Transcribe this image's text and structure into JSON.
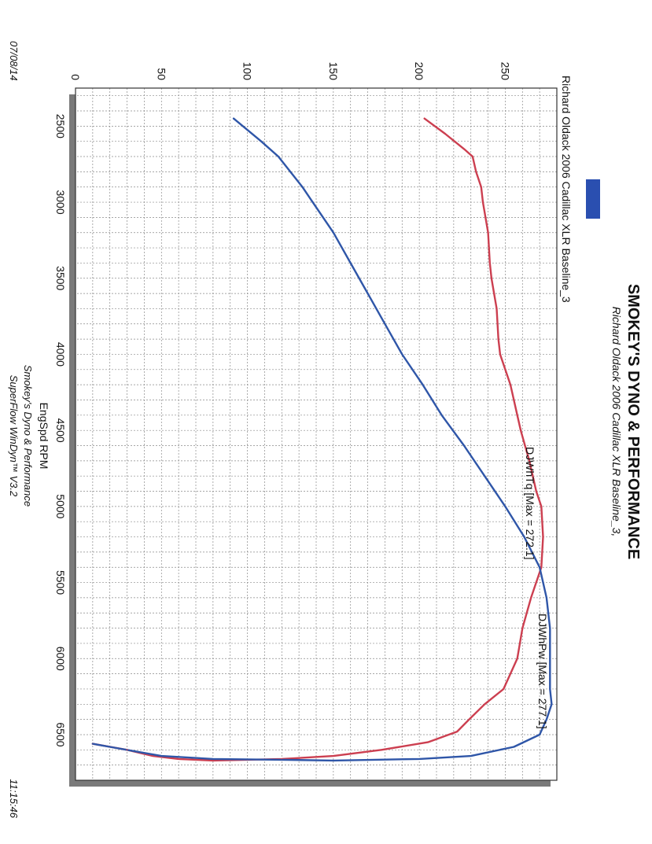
{
  "header": {
    "title": "SMOKEY'S DYNO & PERFORMANCE",
    "subtitle": "Richard Oldack 2006 Cadillac XLR Baseline_3,",
    "run_name": "Richard Oldack 2006 Cadillac XLR Baseline_3"
  },
  "footer": {
    "date": "07/08/14",
    "time": "11:15:46",
    "credit_1": "Smokey's Dyno & Performance",
    "credit_2": "SuperFlow WinDyn™ V3.2"
  },
  "colors": {
    "torque": "#cc3f50",
    "power": "#2f56a8",
    "legend_swatch": "#2a4fb0"
  },
  "chart_data": {
    "type": "line",
    "xlabel": "EngSpd RPM",
    "ylabel": "",
    "xlim": [
      2250,
      6800
    ],
    "ylim": [
      0,
      280
    ],
    "xticks": [
      2500,
      3000,
      3500,
      4000,
      4500,
      5000,
      5500,
      6000,
      6500
    ],
    "yticks": [
      0,
      50,
      100,
      150,
      200,
      250
    ],
    "grid": true,
    "series": [
      {
        "name": "DJWhTq [Max = 272.1]",
        "color": "#cc3f50",
        "points": [
          [
            2450,
            203
          ],
          [
            2550,
            215
          ],
          [
            2650,
            226
          ],
          [
            2700,
            231
          ],
          [
            2800,
            233
          ],
          [
            2900,
            236
          ],
          [
            3000,
            237
          ],
          [
            3200,
            240
          ],
          [
            3400,
            241
          ],
          [
            3500,
            242
          ],
          [
            3700,
            245
          ],
          [
            3900,
            246
          ],
          [
            4000,
            247
          ],
          [
            4200,
            253
          ],
          [
            4400,
            257
          ],
          [
            4500,
            259
          ],
          [
            4700,
            264
          ],
          [
            4900,
            268
          ],
          [
            5000,
            271
          ],
          [
            5200,
            272
          ],
          [
            5400,
            271
          ],
          [
            5600,
            265
          ],
          [
            5800,
            260
          ],
          [
            6000,
            257
          ],
          [
            6200,
            249
          ],
          [
            6300,
            238
          ],
          [
            6400,
            229
          ],
          [
            6480,
            222
          ],
          [
            6550,
            205
          ],
          [
            6600,
            178
          ],
          [
            6640,
            150
          ],
          [
            6660,
            120
          ],
          [
            6670,
            80
          ],
          [
            6660,
            60
          ],
          [
            6640,
            45
          ],
          [
            6600,
            30
          ],
          [
            6560,
            10
          ]
        ]
      },
      {
        "name": "DJWhPw [Max = 277.1]",
        "color": "#2f56a8",
        "points": [
          [
            2450,
            92
          ],
          [
            2600,
            108
          ],
          [
            2700,
            118
          ],
          [
            2800,
            125
          ],
          [
            2900,
            132
          ],
          [
            3000,
            138
          ],
          [
            3200,
            150
          ],
          [
            3400,
            160
          ],
          [
            3600,
            170
          ],
          [
            3800,
            180
          ],
          [
            4000,
            190
          ],
          [
            4200,
            202
          ],
          [
            4400,
            213
          ],
          [
            4600,
            226
          ],
          [
            4800,
            238
          ],
          [
            5000,
            250
          ],
          [
            5200,
            261
          ],
          [
            5400,
            270
          ],
          [
            5600,
            274
          ],
          [
            5800,
            276
          ],
          [
            6000,
            276
          ],
          [
            6200,
            276
          ],
          [
            6300,
            277
          ],
          [
            6400,
            274
          ],
          [
            6500,
            270
          ],
          [
            6580,
            255
          ],
          [
            6640,
            230
          ],
          [
            6660,
            200
          ],
          [
            6670,
            150
          ],
          [
            6665,
            120
          ],
          [
            6660,
            80
          ],
          [
            6640,
            50
          ],
          [
            6610,
            35
          ],
          [
            6580,
            20
          ],
          [
            6560,
            10
          ]
        ]
      }
    ]
  }
}
